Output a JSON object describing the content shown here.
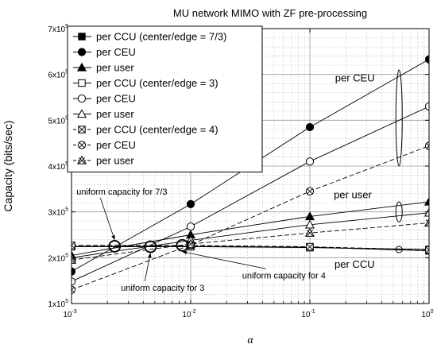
{
  "chart_data": {
    "type": "line",
    "title": "MU network MIMO with ZF pre-processing",
    "xlabel": "α",
    "ylabel": "Capacity (bits/sec)",
    "xscale": "log",
    "xlim": [
      0.001,
      1
    ],
    "ylim": [
      100000,
      700000
    ],
    "x": [
      0.001,
      0.01,
      0.1,
      1
    ],
    "xtick_labels": [
      {
        "base": "10",
        "exp": "-3"
      },
      {
        "base": "10",
        "exp": "-2"
      },
      {
        "base": "10",
        "exp": "-1"
      },
      {
        "base": "10",
        "exp": "0"
      }
    ],
    "ytick_labels": [
      {
        "value": 100000,
        "base": "1x10",
        "exp": "5"
      },
      {
        "value": 200000,
        "base": "2x10",
        "exp": "5"
      },
      {
        "value": 300000,
        "base": "3x10",
        "exp": "5"
      },
      {
        "value": 400000,
        "base": "4x10",
        "exp": "5"
      },
      {
        "value": 500000,
        "base": "5x10",
        "exp": "5"
      },
      {
        "value": 600000,
        "base": "6x10",
        "exp": "5"
      },
      {
        "value": 700000,
        "base": "7x10",
        "exp": "5"
      }
    ],
    "grid": true,
    "legend_position": "top-left",
    "series": [
      {
        "name": "per CCU (center/edge = 7/3)",
        "marker": "filled-square",
        "dash": "solid",
        "values": [
          225000,
          225000,
          223000,
          215000
        ]
      },
      {
        "name": "per CEU",
        "marker": "filled-circle",
        "dash": "solid",
        "values": [
          170000,
          317000,
          485000,
          633000
        ]
      },
      {
        "name": "per user",
        "marker": "filled-triangle",
        "dash": "solid",
        "values": [
          205000,
          250000,
          290000,
          322000
        ]
      },
      {
        "name": "per CCU (center/edge = 3)",
        "marker": "open-square",
        "dash": "solid",
        "values": [
          224000,
          224000,
          222000,
          218000
        ]
      },
      {
        "name": "per CEU",
        "marker": "open-circle",
        "dash": "solid",
        "values": [
          148000,
          268000,
          410000,
          530000
        ]
      },
      {
        "name": "per user",
        "marker": "open-triangle",
        "dash": "solid",
        "values": [
          200000,
          238000,
          272000,
          298000
        ]
      },
      {
        "name": "per CCU (center/edge = 4)",
        "marker": "x-square",
        "dash": "dashed",
        "values": [
          227000,
          227000,
          224000,
          217000
        ]
      },
      {
        "name": "per CEU",
        "marker": "x-circle",
        "dash": "dashed",
        "values": [
          130000,
          228000,
          345000,
          444000
        ]
      },
      {
        "name": "per user",
        "marker": "x-triangle",
        "dash": "dashed",
        "values": [
          195000,
          230000,
          254000,
          276000
        ]
      }
    ],
    "annotations": {
      "group_labels": [
        {
          "text": "per CEU",
          "x": 0.35,
          "y": 585000
        },
        {
          "text": "per user",
          "x": 0.33,
          "y": 330000
        },
        {
          "text": "per CCU",
          "x": 0.35,
          "y": 178000
        }
      ],
      "uniform_labels": [
        {
          "text": "uniform capacity for 7/3",
          "x": 0.0011,
          "y": 338000,
          "target_x": 0.0023,
          "target_y": 225000
        },
        {
          "text": "uniform capacity for 3",
          "x": 0.0026,
          "y": 128000,
          "target_x": 0.0046,
          "target_y": 224000
        },
        {
          "text": "uniform capacity for 4",
          "x": 0.027,
          "y": 155000,
          "target_x": 0.0085,
          "target_y": 227000
        }
      ],
      "crossover_circles": [
        {
          "x": 0.0023,
          "y": 225000
        },
        {
          "x": 0.0046,
          "y": 224000
        },
        {
          "x": 0.0085,
          "y": 227000
        }
      ],
      "group_ellipses": [
        {
          "x": 0.56,
          "y": 505000,
          "ry_value": 105000
        },
        {
          "x": 0.56,
          "y": 300000,
          "ry_value": 22000
        },
        {
          "x": 0.56,
          "y": 218000,
          "ry_value": 7000
        }
      ]
    }
  }
}
